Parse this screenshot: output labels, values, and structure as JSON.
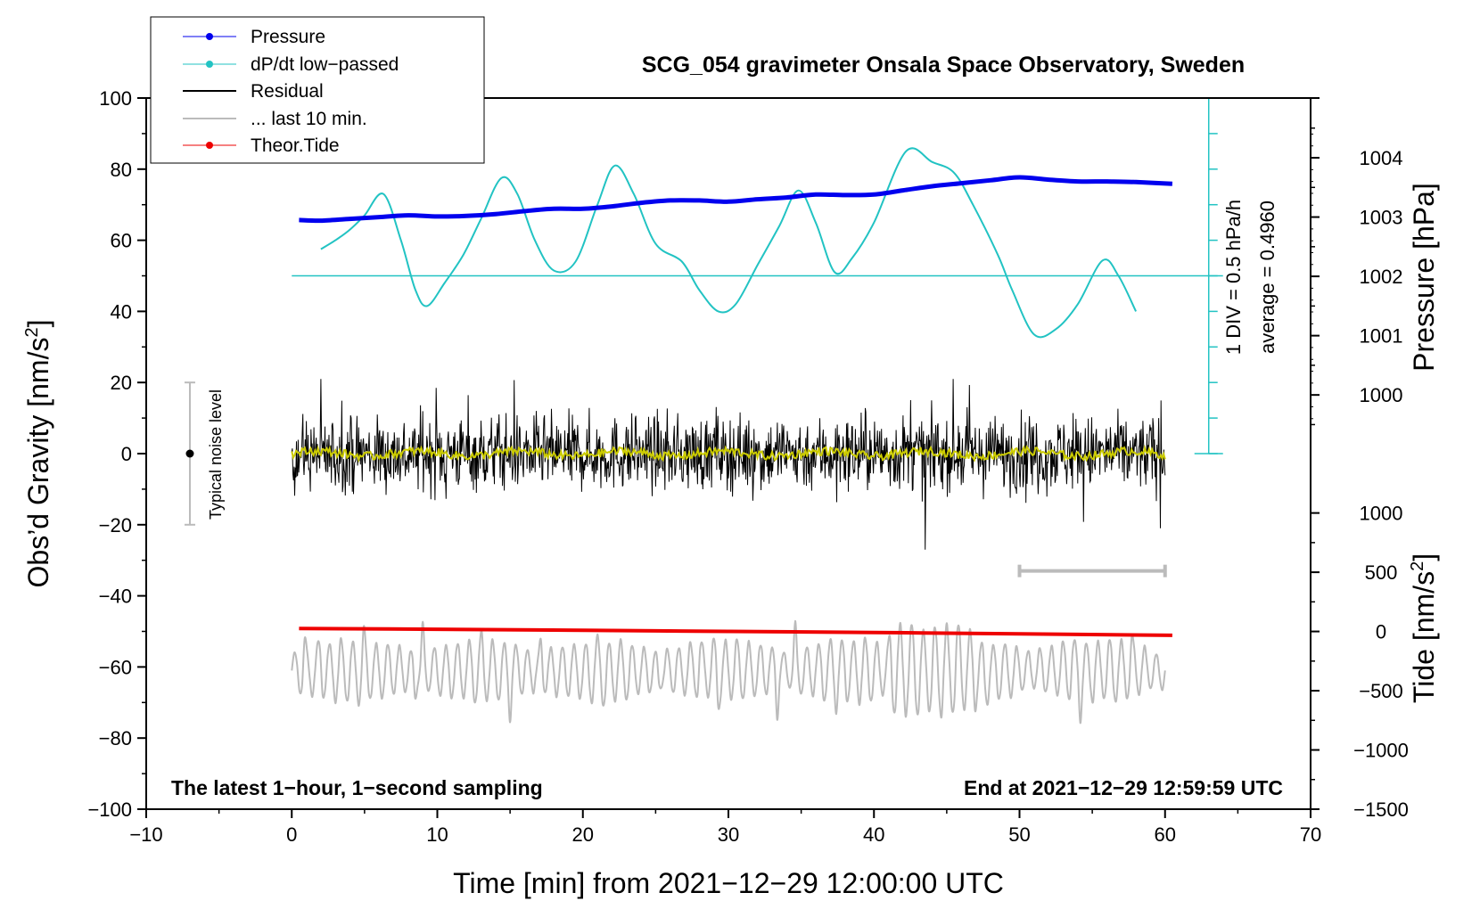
{
  "chart_data": {
    "type": "line",
    "title": "SCG_054 gravimeter Onsala Space Observatory, Sweden",
    "xlabel": "Time [min] from 2021−12−29 12:00:00 UTC",
    "ylabel_left": "Obs’d Gravity [nm/s",
    "ylabel_left_sup": "2",
    "ylabel_left_end": "]",
    "ylabel_right_top": "Pressure [hPa]",
    "ylabel_right_bottom": "Tide [nm/s",
    "ylabel_right_bottom_sup": "2",
    "ylabel_right_bottom_end": "]",
    "xlim": [
      -10,
      70
    ],
    "ylim": [
      -100,
      100
    ],
    "x_ticks": [
      "−10",
      "0",
      "10",
      "20",
      "30",
      "40",
      "50",
      "60",
      "70"
    ],
    "x_tick_values": [
      -10,
      0,
      10,
      20,
      30,
      40,
      50,
      60,
      70
    ],
    "y_ticks": [
      "100",
      "80",
      "60",
      "40",
      "20",
      "0",
      "−20",
      "−40",
      "−60",
      "−80",
      "−100"
    ],
    "y_tick_values": [
      100,
      80,
      60,
      40,
      20,
      0,
      -20,
      -40,
      -60,
      -80,
      -100
    ],
    "pressure_ticks": [
      "1004",
      "1003",
      "1002",
      "1001",
      "1000"
    ],
    "pressure_tick_values": [
      1004,
      1003,
      1002,
      1001,
      1000
    ],
    "pressure_map": {
      "p": [
        1000,
        1004
      ],
      "y": [
        16.5,
        83.2
      ]
    },
    "tide_ticks": [
      "1000",
      "500",
      "0",
      "−500",
      "−1000",
      "−1500"
    ],
    "tide_tick_values": [
      1000,
      500,
      0,
      -500,
      -1000,
      -1500
    ],
    "tide_map": {
      "t": [
        -1500,
        1000
      ],
      "y": [
        -100,
        -16.7
      ]
    },
    "legend": [
      "Pressure",
      "dP/dt low−passed",
      "Residual",
      "... last 10 min.",
      "Theor.Tide"
    ],
    "annotation_left": "The latest 1−hour, 1−second sampling",
    "annotation_right": "End at 2021−12−29 12:59:59 UTC",
    "noise_label": "Typical noise level",
    "noise_level": {
      "x": -7,
      "center": 0,
      "half_range": 20
    },
    "div_label": "1 DIV = 0.5 hPa/h",
    "average_label": "average = 0.4960",
    "dpdt_scale": {
      "x": 63,
      "y_min": 0,
      "y_max": 100,
      "div": 10,
      "baseline": 50
    },
    "last10_bar": {
      "x_start": 50,
      "x_end": 60,
      "y": -33
    },
    "series": [
      {
        "name": "Pressure",
        "color": "#0000ee",
        "x": [
          0.5,
          2,
          4,
          6,
          8,
          10,
          12,
          14,
          16,
          18,
          20,
          22,
          24,
          26,
          28,
          30,
          32,
          34,
          36,
          38,
          40,
          42,
          44,
          46,
          48,
          50,
          52,
          54,
          56,
          58,
          60.5
        ],
        "values": [
          1002.95,
          1002.94,
          1002.97,
          1003.0,
          1003.03,
          1003.01,
          1003.02,
          1003.05,
          1003.1,
          1003.14,
          1003.14,
          1003.18,
          1003.24,
          1003.28,
          1003.28,
          1003.26,
          1003.3,
          1003.33,
          1003.38,
          1003.37,
          1003.38,
          1003.45,
          1003.52,
          1003.57,
          1003.62,
          1003.67,
          1003.63,
          1003.6,
          1003.6,
          1003.59,
          1003.56
        ]
      },
      {
        "name": "dP/dt low−passed",
        "color": "#22c3c3",
        "x": [
          2,
          3,
          4,
          5,
          6.3,
          7.5,
          8.5,
          9.3,
          10.5,
          11.8,
          13,
          14.4,
          15.5,
          16.7,
          18,
          19.5,
          21,
          22.2,
          23.5,
          25,
          26.8,
          28,
          29.3,
          30.5,
          32,
          33.5,
          34.8,
          36,
          37.3,
          38.5,
          40,
          42.2,
          44,
          45.5,
          46.8,
          48.5,
          49.5,
          51,
          52.5,
          54,
          55.7,
          56.8,
          58
        ],
        "values": [
          57.5,
          60,
          63,
          67,
          73,
          60,
          46,
          41.5,
          48,
          56,
          66,
          77.5,
          73,
          60,
          51.5,
          54,
          70,
          81,
          73,
          59,
          54,
          46,
          40,
          42,
          53,
          64,
          74,
          65,
          51,
          55,
          65,
          85,
          82,
          79,
          70,
          56,
          46,
          33.5,
          35,
          42,
          54.3,
          50,
          40
        ]
      },
      {
        "name": "Residual",
        "color": "#000000",
        "x_range": [
          0,
          60
        ],
        "amplitude": 20,
        "negative_peak": -27
      },
      {
        "name": "Residual (smoothed)",
        "color": "#cccc00",
        "x_range": [
          0,
          60
        ],
        "values_near": 0
      },
      {
        "name": "... last 10 min.",
        "color": "#bbbbbb",
        "x_range": [
          0,
          60
        ],
        "center": -61,
        "amplitude": 17,
        "min": -79,
        "max": -43
      },
      {
        "name": "Theor.Tide",
        "color": "#ee0000",
        "x": [
          0.5,
          10,
          20,
          30,
          40,
          50,
          60.5
        ],
        "values": [
          -49.2,
          -49.4,
          -49.7,
          -50.0,
          -50.3,
          -50.7,
          -51.1
        ]
      }
    ]
  }
}
